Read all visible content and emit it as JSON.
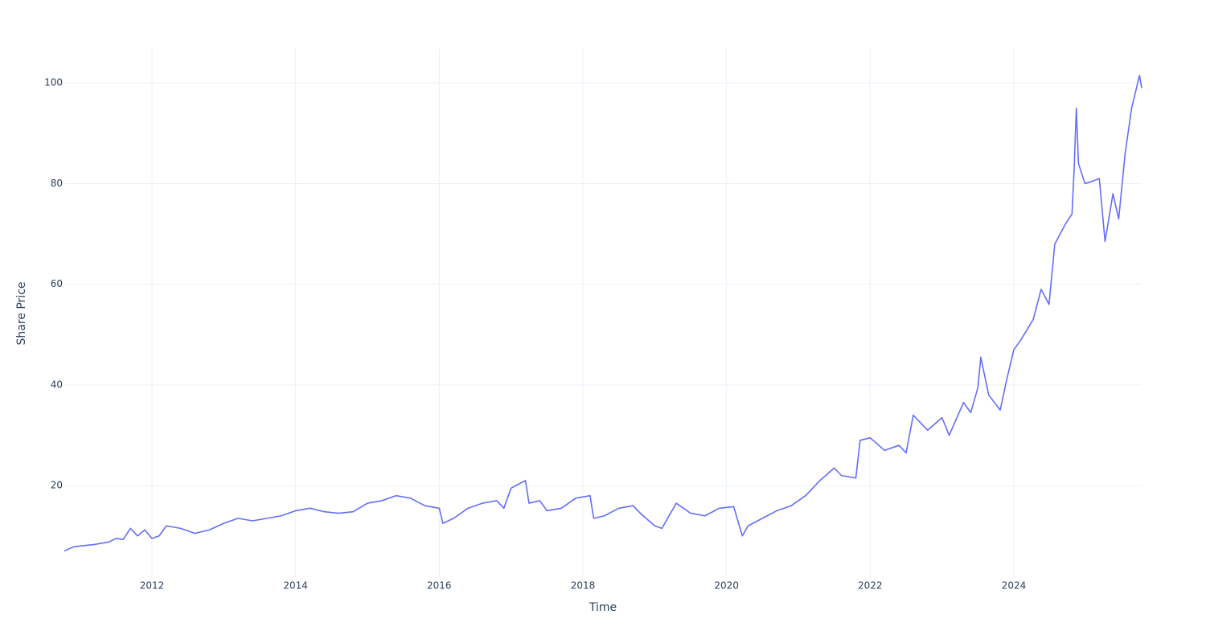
{
  "chart_data": {
    "type": "line",
    "xlabel": "Time",
    "ylabel": "Share Price",
    "x": [
      2010.78,
      2010.9,
      2011.0,
      2011.2,
      2011.4,
      2011.5,
      2011.6,
      2011.7,
      2011.8,
      2011.9,
      2012.0,
      2012.1,
      2012.2,
      2012.4,
      2012.6,
      2012.8,
      2013.0,
      2013.2,
      2013.4,
      2013.6,
      2013.8,
      2014.0,
      2014.2,
      2014.4,
      2014.6,
      2014.8,
      2015.0,
      2015.2,
      2015.4,
      2015.6,
      2015.8,
      2016.0,
      2016.05,
      2016.2,
      2016.4,
      2016.6,
      2016.8,
      2016.9,
      2017.0,
      2017.2,
      2017.25,
      2017.4,
      2017.5,
      2017.7,
      2017.9,
      2018.1,
      2018.15,
      2018.3,
      2018.5,
      2018.7,
      2018.8,
      2019.0,
      2019.1,
      2019.3,
      2019.5,
      2019.7,
      2019.9,
      2020.1,
      2020.22,
      2020.3,
      2020.5,
      2020.7,
      2020.9,
      2021.1,
      2021.3,
      2021.5,
      2021.6,
      2021.8,
      2021.86,
      2022.0,
      2022.2,
      2022.4,
      2022.5,
      2022.6,
      2022.8,
      2023.0,
      2023.1,
      2023.3,
      2023.4,
      2023.5,
      2023.54,
      2023.65,
      2023.81,
      2023.9,
      2024.0,
      2024.1,
      2024.27,
      2024.38,
      2024.49,
      2024.57,
      2024.72,
      2024.81,
      2024.84,
      2024.87,
      2024.9,
      2024.99,
      2025.1,
      2025.19,
      2025.27,
      2025.38,
      2025.46,
      2025.55,
      2025.64,
      2025.75,
      2025.78
    ],
    "series": [
      {
        "name": "Share Price",
        "color": "#636efa",
        "values": [
          7.0,
          7.8,
          8.0,
          8.3,
          8.8,
          9.5,
          9.3,
          11.5,
          10.0,
          11.2,
          9.5,
          10.0,
          12.0,
          11.5,
          10.5,
          11.2,
          12.5,
          13.5,
          13.0,
          13.5,
          14.0,
          15.0,
          15.5,
          14.8,
          14.5,
          14.8,
          16.5,
          17.0,
          18.0,
          17.5,
          16.0,
          15.5,
          12.5,
          13.5,
          15.5,
          16.5,
          17.0,
          15.5,
          19.5,
          21.0,
          16.5,
          17.0,
          15.0,
          15.5,
          17.5,
          18.0,
          13.5,
          14.0,
          15.5,
          16.0,
          14.5,
          12.0,
          11.5,
          16.5,
          14.5,
          14.0,
          15.5,
          15.8,
          10.0,
          12.0,
          13.5,
          15.0,
          16.0,
          18.0,
          21.0,
          23.5,
          22.0,
          21.5,
          29.0,
          29.5,
          27.0,
          28.0,
          26.5,
          34.0,
          31.0,
          33.5,
          30.0,
          36.5,
          34.5,
          39.5,
          45.5,
          38.0,
          35.0,
          41.0,
          47.0,
          49.0,
          53.0,
          59.0,
          56.0,
          68.0,
          72.0,
          74.0,
          83.0,
          95.0,
          84.0,
          80.0,
          80.5,
          81.0,
          68.5,
          78.0,
          73.0,
          86.0,
          95.0,
          101.5,
          99.0
        ]
      }
    ],
    "xlim": [
      2010.78,
      2025.78
    ],
    "xticks": [
      2012,
      2014,
      2016,
      2018,
      2020,
      2022,
      2024
    ],
    "ylim": [
      1.5,
      106.9
    ],
    "yticks": [
      20,
      40,
      60,
      80,
      100
    ],
    "grid": true
  }
}
